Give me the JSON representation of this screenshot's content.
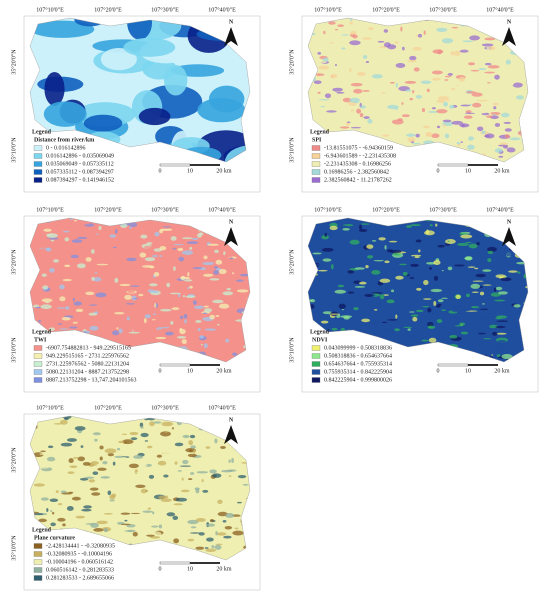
{
  "panels": [
    {
      "lon_labels": [
        "107°10'0\"E",
        "107°20'0\"E",
        "107°30'0\"E",
        "107°40'0\"E"
      ],
      "lat_labels": [
        "35°20'0\"N",
        "35°10'0\"N"
      ],
      "north": "N",
      "legend_title": "Legend",
      "layer": "Distance from river/km",
      "classes": [
        {
          "label": "0 - 0.016142896",
          "color": "#cdf1fb"
        },
        {
          "label": "0.016142896 - 0.035069049",
          "color": "#7cd6ef"
        },
        {
          "label": "0.035069049 - 0.057335112",
          "color": "#36a4de"
        },
        {
          "label": "0.057335112 - 0.087394297",
          "color": "#0f5fbe"
        },
        {
          "label": "0.087394297 - 0.141946152",
          "color": "#08208a"
        }
      ],
      "scale_labels": [
        "0",
        "10",
        "20 km"
      ]
    },
    {
      "lon_labels": [
        "107°10'0\"E",
        "107°20'0\"E",
        "107°30'0\"E",
        "107°40'0\"E"
      ],
      "lat_labels": [
        "35°20'0\"N",
        "35°10'0\"N"
      ],
      "north": "N",
      "legend_title": "Legend",
      "layer": "SPI",
      "classes": [
        {
          "label": "-13.81551075 - -6.94360159",
          "color": "#f08a8a"
        },
        {
          "label": "-6.943601589 - -2.231435308",
          "color": "#f5d29a"
        },
        {
          "label": "-2.231435308 - 0.16986256",
          "color": "#eeeeb4"
        },
        {
          "label": "0.16986256 - 2.382560842",
          "color": "#a3d9da"
        },
        {
          "label": "2.382560842 - 11.21787262",
          "color": "#9a6ed0"
        }
      ],
      "scale_labels": [
        "0",
        "10",
        "20 km"
      ]
    },
    {
      "lon_labels": [
        "107°10'0\"E",
        "107°20'0\"E",
        "107°30'0\"E",
        "107°40'0\"E"
      ],
      "lat_labels": [
        "35°20'0\"N",
        "35°10'0\"N"
      ],
      "north": "N",
      "legend_title": "Legend",
      "layer": "TWI",
      "classes": [
        {
          "label": "-6907.754882813 - 949.229515165",
          "color": "#f4918b"
        },
        {
          "label": "949.229515165 - 2731.225976562",
          "color": "#f5f0b0"
        },
        {
          "label": "2731.225976562 - 5080.22131204",
          "color": "#c8f0d0"
        },
        {
          "label": "5080.22131204 - 8887.213752298",
          "color": "#a0c8f0"
        },
        {
          "label": "8887.213752298 - 13,747.204101563",
          "color": "#8090e0"
        }
      ],
      "scale_labels": [
        "0",
        "10",
        "20 km"
      ]
    },
    {
      "lon_labels": [
        "107°10'0\"E",
        "107°20'0\"E",
        "107°30'0\"E",
        "107°40'0\"E"
      ],
      "lat_labels": [
        "35°20'0\"N",
        "35°10'0\"N"
      ],
      "north": "N",
      "legend_title": "Legend",
      "layer": "NDVI",
      "classes": [
        {
          "label": "0.043099999 - 0.508318836",
          "color": "#eef06e"
        },
        {
          "label": "0.508318836 - 0.654637664",
          "color": "#8ee68e"
        },
        {
          "label": "0.654637664 - 0.755935314",
          "color": "#2fae5e"
        },
        {
          "label": "0.755935314 - 0.842225904",
          "color": "#1f4e9e"
        },
        {
          "label": "0.842225904 - 0.999800026",
          "color": "#0f1860"
        }
      ],
      "scale_labels": [
        "0",
        "10",
        "20 km"
      ]
    },
    {
      "lon_labels": [
        "107°10'0\"E",
        "107°20'0\"E",
        "107°30'0\"E",
        "107°40'0\"E"
      ],
      "lat_labels": [
        "35°20'0\"N",
        "35°10'0\"N"
      ],
      "north": "N",
      "legend_title": "Legend",
      "layer": "Plane curvature",
      "classes": [
        {
          "label": "-2.428134441 - -0.32080935",
          "color": "#8b6020"
        },
        {
          "label": "-0.32080935 - -0.10004196",
          "color": "#c8b060"
        },
        {
          "label": "-0.10004196 - 0.060516142",
          "color": "#eeefb0"
        },
        {
          "label": "0.060516142 - 0.281283533",
          "color": "#90b0a0"
        },
        {
          "label": "0.281283533 - 2.689655066",
          "color": "#306070"
        }
      ],
      "scale_labels": [
        "0",
        "10",
        "20 km"
      ]
    }
  ]
}
